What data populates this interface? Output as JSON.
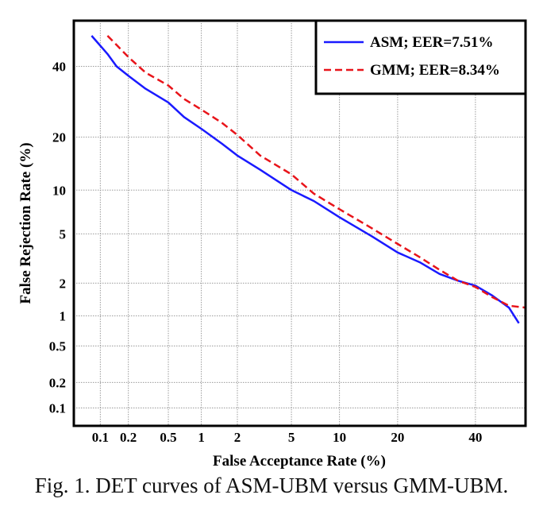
{
  "caption": "Fig. 1. DET curves of ASM-UBM versus GMM-UBM.",
  "chart_data": {
    "type": "line",
    "title": "",
    "xlabel": "False Acceptance Rate (%)",
    "ylabel": "False Rejection Rate (%)",
    "xscale": "normal-deviate (probit)",
    "yscale": "normal-deviate (probit)",
    "xlim": [
      0.05,
      55
    ],
    "ylim": [
      0.06,
      55
    ],
    "x_ticks": [
      0.1,
      0.2,
      0.5,
      1,
      2,
      5,
      10,
      20,
      40
    ],
    "x_tick_labels": [
      "0.1",
      "0.2",
      "0.5",
      "1",
      "2",
      "5",
      "10",
      "20",
      "40"
    ],
    "y_ticks": [
      0.1,
      0.2,
      0.5,
      1,
      2,
      5,
      10,
      20,
      40
    ],
    "y_tick_labels": [
      "0.1",
      "0.2",
      "0.5",
      "1",
      "2",
      "5",
      "10",
      "20",
      "40"
    ],
    "grid": true,
    "legend_position": "top-right",
    "series": [
      {
        "name": "ASM; EER=7.51%",
        "color": "#1a1aff",
        "dash": "solid",
        "points": [
          [
            0.08,
            50
          ],
          [
            0.12,
            44
          ],
          [
            0.15,
            40
          ],
          [
            0.2,
            37
          ],
          [
            0.3,
            33
          ],
          [
            0.5,
            29
          ],
          [
            0.7,
            25
          ],
          [
            1,
            22
          ],
          [
            1.5,
            18.5
          ],
          [
            2,
            16
          ],
          [
            3,
            13.3
          ],
          [
            5,
            10
          ],
          [
            7,
            8.5
          ],
          [
            10,
            6.6
          ],
          [
            15,
            4.8
          ],
          [
            20,
            3.6
          ],
          [
            25,
            3
          ],
          [
            30,
            2.4
          ],
          [
            35,
            2.1
          ],
          [
            40,
            1.9
          ],
          [
            45,
            1.55
          ],
          [
            50,
            1.2
          ],
          [
            53,
            0.85
          ]
        ]
      },
      {
        "name": "GMM; EER=8.34%",
        "color": "#e8141a",
        "dash": "dashed",
        "points": [
          [
            0.12,
            50
          ],
          [
            0.15,
            47
          ],
          [
            0.2,
            43
          ],
          [
            0.3,
            38
          ],
          [
            0.5,
            34
          ],
          [
            0.7,
            30
          ],
          [
            1,
            27
          ],
          [
            1.5,
            23.5
          ],
          [
            2,
            20.5
          ],
          [
            3,
            16
          ],
          [
            5,
            12.5
          ],
          [
            7,
            9.5
          ],
          [
            10,
            7.5
          ],
          [
            15,
            5.5
          ],
          [
            20,
            4.2
          ],
          [
            25,
            3.3
          ],
          [
            30,
            2.6
          ],
          [
            35,
            2.1
          ],
          [
            40,
            1.85
          ],
          [
            45,
            1.5
          ],
          [
            50,
            1.25
          ],
          [
            55,
            1.2
          ]
        ]
      }
    ]
  }
}
